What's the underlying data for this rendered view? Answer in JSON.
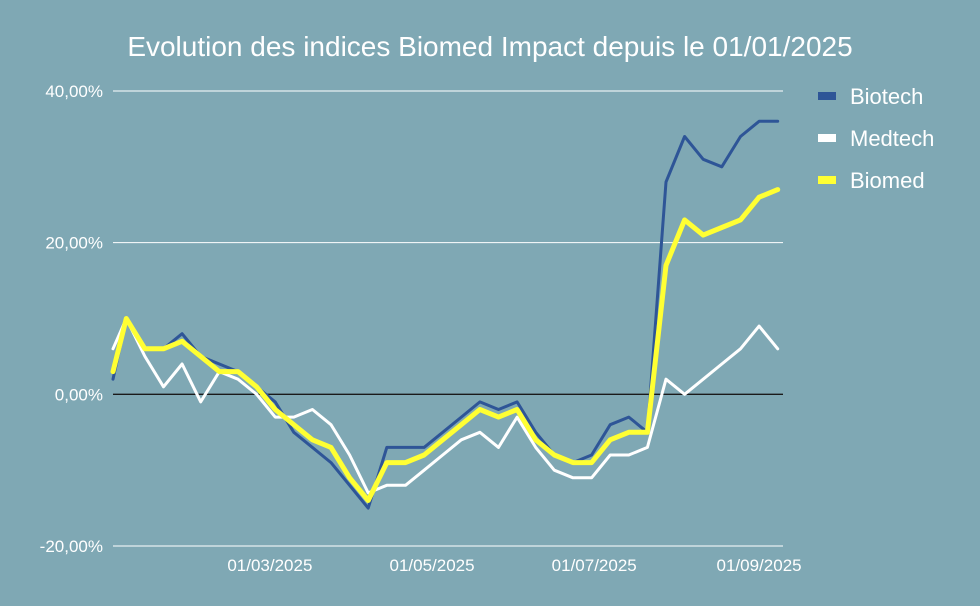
{
  "chart_data": {
    "type": "line",
    "title": "Evolution des indices Biomed Impact depuis le 01/01/2025",
    "xlabel": "",
    "ylabel": "",
    "ylim": [
      -20,
      40
    ],
    "y_ticks": [
      {
        "value": 40,
        "label": "40,00%"
      },
      {
        "value": 20,
        "label": "20,00%"
      },
      {
        "value": 0,
        "label": "0,00%"
      },
      {
        "value": -20,
        "label": "-20,00%"
      }
    ],
    "x_ticks": [
      {
        "date": "2025-03-01",
        "label": "01/03/2025"
      },
      {
        "date": "2025-05-01",
        "label": "01/05/2025"
      },
      {
        "date": "2025-07-01",
        "label": "01/07/2025"
      },
      {
        "date": "2025-09-01",
        "label": "01/09/2025"
      }
    ],
    "xlim": [
      "2025-01-01",
      "2025-09-10"
    ],
    "grid": true,
    "legend": "top-right",
    "x": [
      "2025-01-01",
      "2025-01-06",
      "2025-01-13",
      "2025-01-20",
      "2025-01-27",
      "2025-02-03",
      "2025-02-10",
      "2025-02-17",
      "2025-02-24",
      "2025-03-03",
      "2025-03-10",
      "2025-03-17",
      "2025-03-24",
      "2025-03-31",
      "2025-04-07",
      "2025-04-14",
      "2025-04-21",
      "2025-04-28",
      "2025-05-05",
      "2025-05-12",
      "2025-05-19",
      "2025-05-26",
      "2025-06-02",
      "2025-06-09",
      "2025-06-16",
      "2025-06-23",
      "2025-06-30",
      "2025-07-07",
      "2025-07-14",
      "2025-07-21",
      "2025-07-28",
      "2025-08-04",
      "2025-08-11",
      "2025-08-18",
      "2025-08-25",
      "2025-09-01",
      "2025-09-08"
    ],
    "series": [
      {
        "name": "Biotech",
        "color": "#2e5597",
        "values": [
          2,
          10,
          6,
          6,
          8,
          5,
          4,
          3,
          1,
          -1,
          -5,
          -7,
          -9,
          -12,
          -15,
          -7,
          -7,
          -7,
          -5,
          -3,
          -1,
          -2,
          -1,
          -5,
          -8,
          -9,
          -8,
          -4,
          -3,
          -5,
          28,
          34,
          31,
          30,
          34,
          36,
          36
        ]
      },
      {
        "name": "Medtech",
        "color": "#ffffff",
        "values": [
          6,
          10,
          5,
          1,
          4,
          -1,
          3,
          2,
          0,
          -3,
          -3,
          -2,
          -4,
          -8,
          -13,
          -12,
          -12,
          -10,
          -8,
          -6,
          -5,
          -7,
          -3,
          -7,
          -10,
          -11,
          -11,
          -8,
          -8,
          -7,
          2,
          0,
          2,
          4,
          6,
          9,
          6
        ]
      },
      {
        "name": "Biomed",
        "color": "#ffff33",
        "values": [
          3,
          10,
          6,
          6,
          7,
          5,
          3,
          3,
          1,
          -2,
          -4,
          -6,
          -7,
          -11,
          -14,
          -9,
          -9,
          -8,
          -6,
          -4,
          -2,
          -3,
          -2,
          -6,
          -8,
          -9,
          -9,
          -6,
          -5,
          -5,
          17,
          23,
          21,
          22,
          23,
          26,
          27
        ]
      }
    ]
  }
}
